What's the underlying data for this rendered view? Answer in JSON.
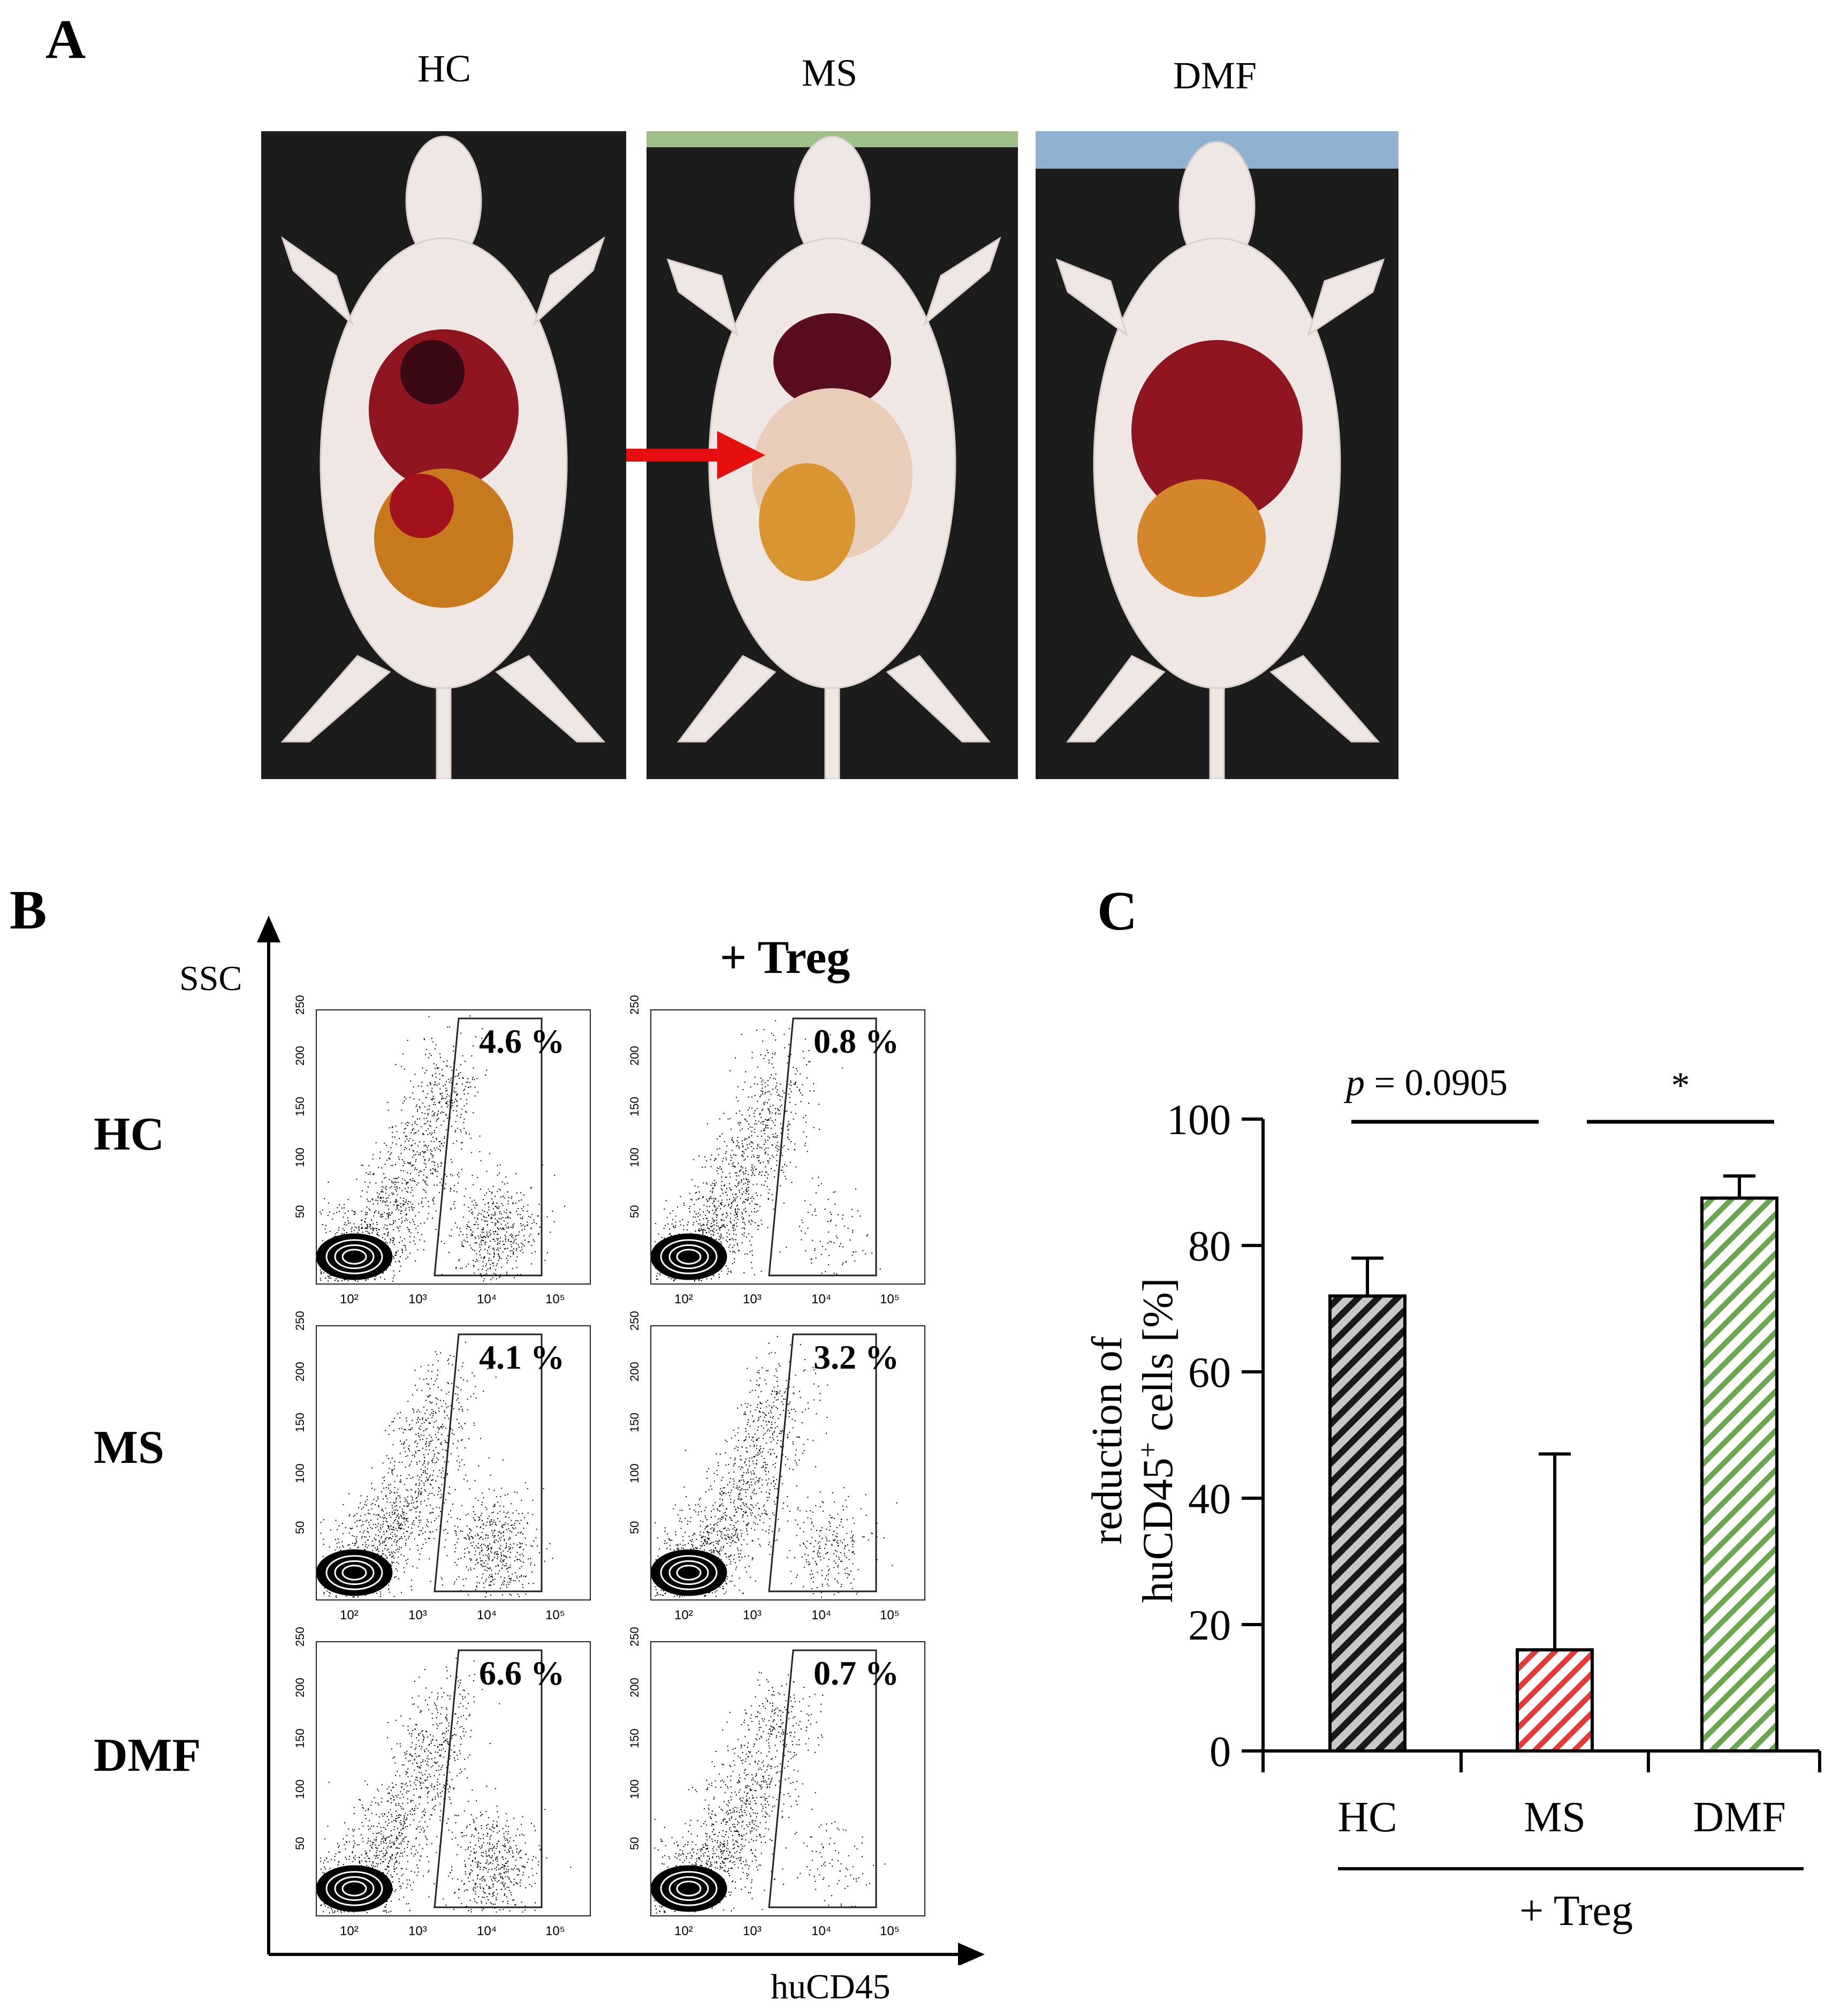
{
  "panels": {
    "a": "A",
    "b": "B",
    "c": "C"
  },
  "panel_a": {
    "groups": [
      "HC",
      "MS",
      "DMF"
    ]
  },
  "panel_b": {
    "header": "+ Treg",
    "y_axis": "SSC",
    "x_axis": "huCD45",
    "rows": [
      {
        "label": "HC",
        "without_treg": "4.6 %",
        "with_treg": "0.8 %"
      },
      {
        "label": "MS",
        "without_treg": "4.1 %",
        "with_treg": "3.2 %"
      },
      {
        "label": "DMF",
        "without_treg": "6.6 %",
        "with_treg": "0.7 %"
      }
    ],
    "y_ticks": [
      "250",
      "200",
      "150",
      "100",
      "50"
    ],
    "x_ticks": [
      "10²",
      "10³",
      "10⁴",
      "10⁵"
    ]
  },
  "chart_data": {
    "type": "bar",
    "categories": [
      "HC",
      "MS",
      "DMF"
    ],
    "values": [
      72,
      16,
      87.5
    ],
    "errors": [
      6,
      31,
      3.5
    ],
    "ylabel": "reduction of huCD45⁺ cells [%]",
    "ylabel_parts": {
      "line1": "reduction of",
      "line2_pre": "huCD45",
      "line2_sup": "+",
      "line2_post": " cells [%]"
    },
    "ylim": [
      0,
      100
    ],
    "yticks": [
      0,
      20,
      40,
      60,
      80,
      100
    ],
    "group_label": "+ Treg",
    "bar_colors": [
      "#1a1a1a",
      "#e53935",
      "#6aa84f"
    ],
    "annotations": [
      {
        "between": [
          "HC",
          "MS"
        ],
        "p_label": "p",
        "p_value": " = 0.0905"
      },
      {
        "between": [
          "MS",
          "DMF"
        ],
        "text": "*"
      }
    ]
  }
}
